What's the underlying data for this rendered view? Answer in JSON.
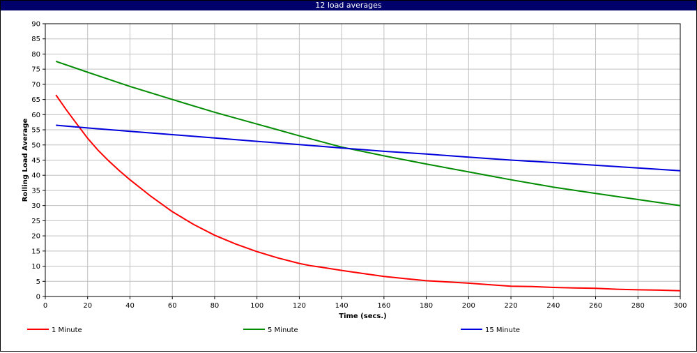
{
  "window": {
    "title": "12 load averages"
  },
  "chart_data": {
    "type": "line",
    "title": "12 load averages",
    "xlabel": "Time (secs.)",
    "ylabel": "Rolling Load Average",
    "xlim": [
      0,
      300
    ],
    "ylim": [
      0,
      90
    ],
    "xticks": [
      0,
      20,
      40,
      60,
      80,
      100,
      120,
      140,
      160,
      180,
      200,
      220,
      240,
      260,
      280,
      300
    ],
    "yticks": [
      0,
      5,
      10,
      15,
      20,
      25,
      30,
      35,
      40,
      45,
      50,
      55,
      60,
      65,
      70,
      75,
      80,
      85,
      90
    ],
    "grid": true,
    "legend_position": "bottom",
    "series": [
      {
        "name": "1 Minute",
        "color": "#ff0000",
        "x": [
          5,
          10,
          15,
          20,
          25,
          30,
          35,
          40,
          50,
          60,
          70,
          80,
          90,
          100,
          110,
          120,
          125,
          130,
          140,
          150,
          160,
          170,
          180,
          190,
          200,
          210,
          220,
          230,
          240,
          250,
          260,
          270,
          280,
          290,
          300
        ],
        "y": [
          66.5,
          61.5,
          56.8,
          52.2,
          48.2,
          44.7,
          41.5,
          38.5,
          33.0,
          28.0,
          23.8,
          20.2,
          17.3,
          14.8,
          12.7,
          10.9,
          10.2,
          9.7,
          8.6,
          7.6,
          6.6,
          5.9,
          5.2,
          4.8,
          4.4,
          3.9,
          3.4,
          3.3,
          3.0,
          2.8,
          2.7,
          2.4,
          2.2,
          2.1,
          1.9
        ]
      },
      {
        "name": "5 Minute",
        "color": "#008c00",
        "x": [
          5,
          20,
          40,
          60,
          80,
          100,
          120,
          140,
          160,
          180,
          200,
          220,
          240,
          260,
          280,
          300
        ],
        "y": [
          77.6,
          74.0,
          69.3,
          65.0,
          60.8,
          56.9,
          53.0,
          49.3,
          46.4,
          43.7,
          41.1,
          38.5,
          36.1,
          34.0,
          32.0,
          30.0
        ]
      },
      {
        "name": "15 Minute",
        "color": "#0000dc",
        "x": [
          5,
          20,
          40,
          60,
          80,
          100,
          120,
          140,
          160,
          180,
          200,
          220,
          240,
          260,
          280,
          300
        ],
        "y": [
          56.5,
          55.6,
          54.5,
          53.4,
          52.3,
          51.2,
          50.1,
          49.0,
          47.9,
          47.0,
          46.0,
          45.0,
          44.2,
          43.3,
          42.4,
          41.5
        ]
      }
    ]
  }
}
